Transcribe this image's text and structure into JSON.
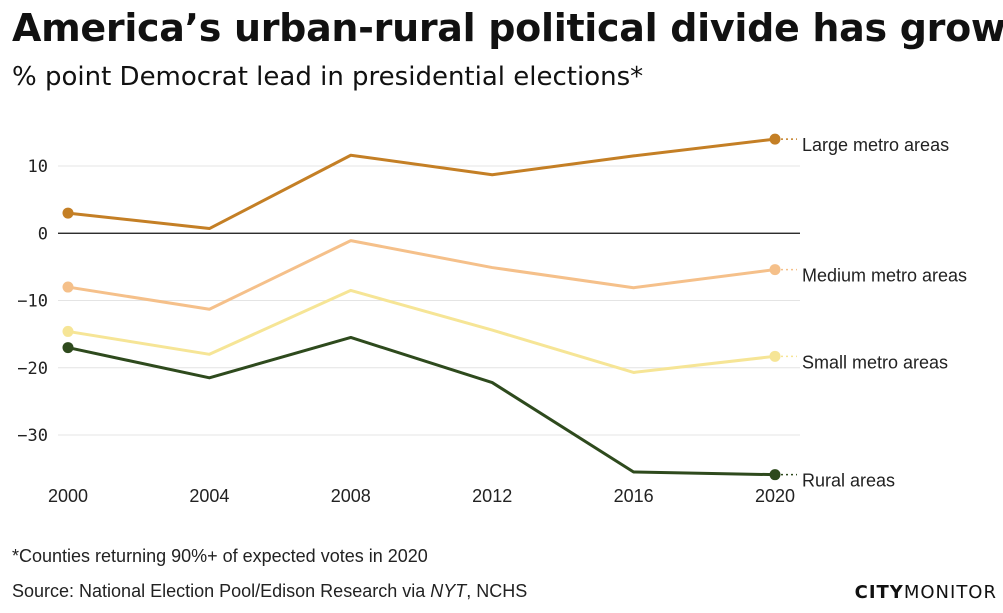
{
  "header": {
    "title": "America’s urban-rural political divide has grown",
    "subtitle": "% point Democrat lead in presidential elections*"
  },
  "footer": {
    "footnote": "*Counties returning 90%+ of expected votes in 2020",
    "source_prefix": "Source: National Election Pool/Edison Research via ",
    "source_italic": "NYT",
    "source_suffix": ", NCHS",
    "logo_bold": "CITY",
    "logo_light": "MONITOR"
  },
  "chart_data": {
    "type": "line",
    "title": "America’s urban-rural political divide has grown",
    "subtitle": "% point Democrat lead in presidential elections*",
    "xlabel": "",
    "ylabel": "",
    "x": [
      2000,
      2004,
      2008,
      2012,
      2016,
      2020
    ],
    "x_ticks": [
      "2000",
      "2004",
      "2008",
      "2012",
      "2016",
      "2020"
    ],
    "y_ticks": [
      10,
      0,
      -10,
      -20,
      -30
    ],
    "ylim": [
      -38,
      17
    ],
    "grid": true,
    "zero_line": true,
    "series": [
      {
        "name": "Large metro areas",
        "color": "#c47f25",
        "values": [
          3,
          0.7,
          11.6,
          8.7,
          11.5,
          14
        ]
      },
      {
        "name": "Medium metro areas",
        "color": "#f5c08a",
        "values": [
          -8,
          -11.3,
          -1.1,
          -5.1,
          -8.1,
          -5.4
        ]
      },
      {
        "name": "Small metro areas",
        "color": "#f6e596",
        "values": [
          -14.6,
          -18,
          -8.5,
          -14.4,
          -20.7,
          -18.3
        ]
      },
      {
        "name": "Rural areas",
        "color": "#2e4a1d",
        "values": [
          -17,
          -21.5,
          -15.5,
          -22.2,
          -35.5,
          -35.9
        ]
      }
    ]
  }
}
